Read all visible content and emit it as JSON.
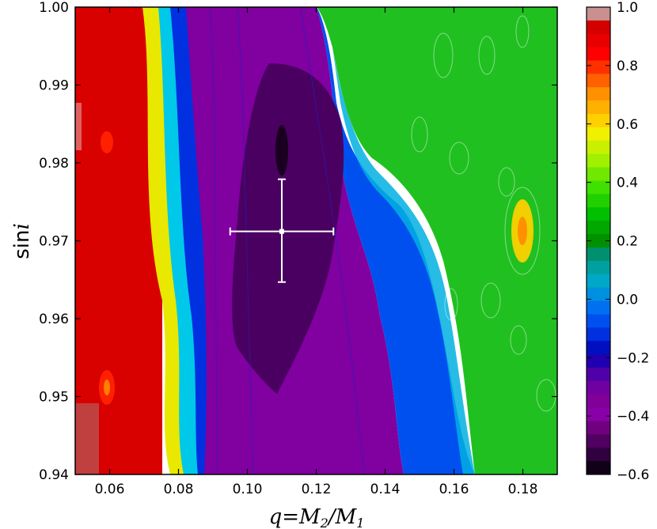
{
  "chart_data": {
    "type": "heatmap",
    "subtype": "filled-contour",
    "title": "",
    "xlabel": "q = M2/M1",
    "ylabel": "sin i",
    "xlim": [
      0.05,
      0.19
    ],
    "ylim": [
      0.94,
      1.0
    ],
    "x_ticks": [
      "0.06",
      "0.08",
      "0.10",
      "0.12",
      "0.14",
      "0.16",
      "0.18"
    ],
    "x_tick_values": [
      0.06,
      0.08,
      0.1,
      0.12,
      0.14,
      0.16,
      0.18
    ],
    "y_ticks": [
      "0.94",
      "0.95",
      "0.96",
      "0.97",
      "0.98",
      "0.99",
      "1.00"
    ],
    "y_tick_values": [
      0.94,
      0.95,
      0.96,
      0.97,
      0.98,
      0.99,
      1.0
    ],
    "colorbar": {
      "colormap": "nipy_spectral-like (black-purple-blue-cyan-green-yellow-red-pink)",
      "range": [
        -0.6,
        1.0
      ],
      "ticks": [
        "1.0",
        "0.8",
        "0.6",
        "0.4",
        "0.2",
        "0.0",
        "−0.2",
        "−0.4",
        "−0.6"
      ],
      "tick_values": [
        1.0,
        0.8,
        0.6,
        0.4,
        0.2,
        0.0,
        -0.2,
        -0.4,
        -0.6
      ]
    },
    "regions": [
      {
        "q_range": [
          0.05,
          0.075
        ],
        "value_approx": 0.85,
        "color": "red"
      },
      {
        "q_range": [
          0.075,
          0.09
        ],
        "value_approx": 0.3,
        "color": "yellow-cyan transition"
      },
      {
        "q_range": [
          0.09,
          0.13
        ],
        "value_approx": -0.5,
        "color": "purple"
      },
      {
        "q_range": [
          0.13,
          0.16
        ],
        "value_approx": -0.2,
        "color": "blue-cyan"
      },
      {
        "q_range": [
          0.16,
          0.19
        ],
        "value_approx": 0.25,
        "color": "green"
      }
    ],
    "minimum_region": {
      "q_center": 0.11,
      "sini_center": 0.974,
      "value_approx": -0.56
    },
    "best_fit_point": {
      "q": 0.11,
      "sini": 0.9712,
      "q_err": [
        0.095,
        0.125
      ],
      "sini_err": [
        0.9647,
        0.9779
      ],
      "color": "#ffffff"
    }
  }
}
